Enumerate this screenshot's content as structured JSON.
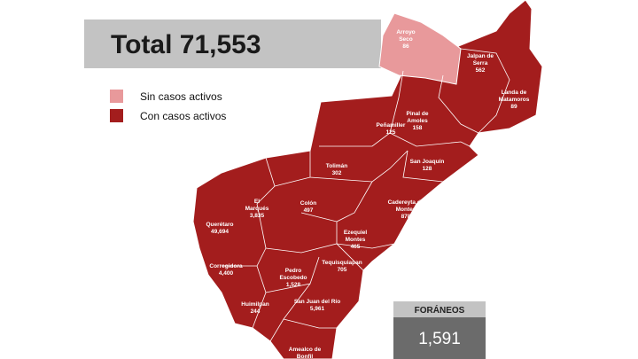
{
  "header": {
    "total": "Total 71,553"
  },
  "legend": [
    {
      "label": "Sin casos activos",
      "color": "#e8999b"
    },
    {
      "label": "Con casos activos",
      "color": "#a31d1d"
    }
  ],
  "municipalities": [
    {
      "name": [
        "Arroyo",
        "Seco"
      ],
      "cases": "86"
    },
    {
      "name": [
        "Jalpan de",
        "Serra"
      ],
      "cases": "562"
    },
    {
      "name": [
        "Landa de",
        "Matamoros"
      ],
      "cases": "89"
    },
    {
      "name": [
        "Pinal de",
        "Amoles"
      ],
      "cases": "158"
    },
    {
      "name": [
        "Peñamiller"
      ],
      "cases": "125"
    },
    {
      "name": [
        "San Joaquín"
      ],
      "cases": "128"
    },
    {
      "name": [
        "Tolimán"
      ],
      "cases": "302"
    },
    {
      "name": [
        "Cadereyta de",
        "Montes"
      ],
      "cases": "878"
    },
    {
      "name": [
        "El",
        "Marqués"
      ],
      "cases": "3,835"
    },
    {
      "name": [
        "Colón"
      ],
      "cases": "497"
    },
    {
      "name": [
        "Querétaro"
      ],
      "cases": "49,694"
    },
    {
      "name": [
        "Ezequiel",
        "Montes"
      ],
      "cases": "465"
    },
    {
      "name": [
        "Tequisquiapan"
      ],
      "cases": "705"
    },
    {
      "name": [
        "Corregidora"
      ],
      "cases": "4,400"
    },
    {
      "name": [
        "Pedro",
        "Escobedo"
      ],
      "cases": "1,528"
    },
    {
      "name": [
        "Huimilpan"
      ],
      "cases": "244"
    },
    {
      "name": [
        "San Juan del Río"
      ],
      "cases": "5,961"
    },
    {
      "name": [
        "Amealco de",
        "Bonfil"
      ],
      "cases": null
    }
  ],
  "foraneos": {
    "label": "FORÁNEOS",
    "value": "1,591"
  }
}
